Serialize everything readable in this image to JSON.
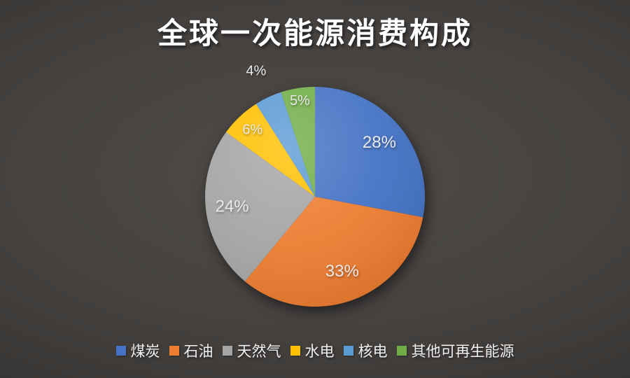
{
  "title": "全球一次能源消费构成",
  "background": {
    "center_color": "#4e4b48",
    "edge_color": "#282625"
  },
  "chart_data": {
    "type": "pie",
    "title": "全球一次能源消费构成",
    "categories": [
      "煤炭",
      "石油",
      "天然气",
      "水电",
      "核电",
      "其他可再生能源"
    ],
    "values": [
      28,
      33,
      24,
      6,
      4,
      5
    ],
    "data_labels": [
      "28%",
      "33%",
      "24%",
      "6%",
      "4%",
      "5%"
    ],
    "colors": [
      "#4472c4",
      "#ed7d31",
      "#a5a5a5",
      "#ffc000",
      "#5b9bd5",
      "#70ad47"
    ],
    "start_angle_deg": 0,
    "direction": "clockwise",
    "legend_position": "bottom",
    "data_label_color": "#e9e9e9",
    "title_color": "#ffffff"
  }
}
